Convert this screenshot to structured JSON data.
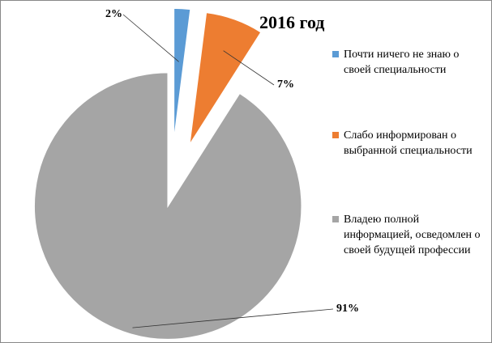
{
  "chart_data": {
    "type": "pie",
    "title": "2016 год",
    "categories": [
      "Почти ничего не знаю о своей специальности",
      "Слабо информирован о выбранной специальности",
      "Владею полной информацией, осведомлен о своей будущей профессии"
    ],
    "values": [
      2,
      7,
      91
    ],
    "value_labels": [
      "2%",
      "7%",
      "91%"
    ],
    "colors": [
      "#5b9bd5",
      "#ed7d31",
      "#a5a5a5"
    ],
    "legend": "right"
  }
}
